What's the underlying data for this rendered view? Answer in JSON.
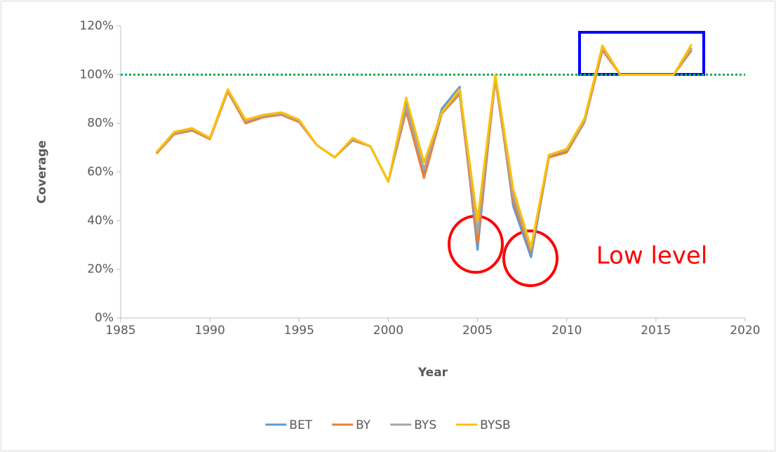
{
  "chart_data": {
    "type": "line",
    "x_label": "Year",
    "y_label": "Coverage",
    "x": [
      1987,
      1988,
      1989,
      1990,
      1991,
      1992,
      1993,
      1994,
      1995,
      1996,
      1997,
      1998,
      1999,
      2000,
      2001,
      2002,
      2003,
      2004,
      2005,
      2006,
      2007,
      2008,
      2009,
      2010,
      2011,
      2012,
      2013,
      2014,
      2015,
      2016,
      2017
    ],
    "series": [
      {
        "name": "BET",
        "color": "#5b9bd5",
        "values": [
          68,
          76,
          77.5,
          74,
          93.5,
          81,
          83,
          84,
          81,
          71,
          66,
          73.5,
          70.5,
          56,
          89,
          59,
          86,
          95,
          28,
          100,
          46,
          25,
          66,
          68.5,
          81,
          111,
          100,
          100,
          100,
          100,
          111
        ]
      },
      {
        "name": "BY",
        "color": "#ed7d31",
        "values": [
          67.5,
          75.5,
          77,
          73.5,
          93,
          80,
          82.5,
          83.5,
          80.5,
          71,
          66,
          73,
          70.5,
          56,
          85,
          57.5,
          84,
          92,
          31,
          98,
          48,
          27,
          66,
          68,
          80.5,
          110,
          100,
          100,
          100,
          100,
          110
        ]
      },
      {
        "name": "BYS",
        "color": "#a5a5a5",
        "values": [
          68,
          76,
          77.5,
          74,
          93.5,
          81,
          83,
          84,
          81,
          71,
          66,
          73.5,
          70.5,
          56,
          87,
          61,
          84.5,
          93,
          35,
          99,
          50,
          28,
          67,
          69,
          81,
          111,
          100,
          100,
          100,
          100,
          111
        ]
      },
      {
        "name": "BYSB",
        "color": "#ffc000",
        "values": [
          68,
          76.5,
          78,
          74,
          94,
          81.5,
          83.5,
          84.5,
          81.5,
          71,
          66,
          74,
          70.5,
          56,
          90.5,
          64,
          84.5,
          94,
          40,
          100,
          53,
          29,
          67,
          69.5,
          82,
          112,
          100,
          100,
          100,
          100,
          112.5
        ]
      }
    ],
    "xlim": [
      1985,
      2020
    ],
    "xticks": [
      1985,
      1990,
      1995,
      2000,
      2005,
      2010,
      2015,
      2020
    ],
    "ylim": [
      0,
      120
    ],
    "yticks": [
      {
        "value": 0,
        "label": "0%"
      },
      {
        "value": 20,
        "label": "20%"
      },
      {
        "value": 40,
        "label": "40%"
      },
      {
        "value": 60,
        "label": "60%"
      },
      {
        "value": 80,
        "label": "80%"
      },
      {
        "value": 100,
        "label": "100%"
      },
      {
        "value": 120,
        "label": "120%"
      }
    ],
    "reference_line": {
      "value": 100,
      "color": "#00b050"
    },
    "annotation": "Low level",
    "legend": "bottom",
    "grid": false
  }
}
